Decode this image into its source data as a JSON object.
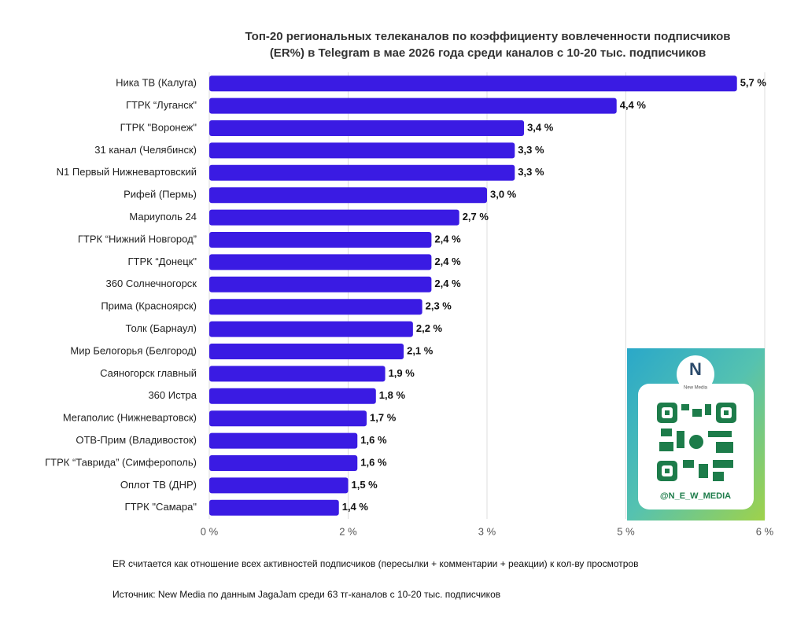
{
  "chart_data": {
    "type": "hbar",
    "title": [
      "Топ-20 региональных телеканалов по коэффициенту вовлеченности подписчиков",
      "(ER%) в Telegram в мае 2026 года среди каналов с 10-20 тыс. подписчиков"
    ],
    "categories": [
      "Ника ТВ (Калуга)",
      "ГТРК “Луганск\"",
      "ГТРК \"Воронеж\"",
      "31 канал (Челябинск)",
      "N1 Первый Нижневартовский",
      "Рифей (Пермь)",
      "Мариуполь 24",
      "ГТРК “Нижний Новгород”",
      "ГТРК “Донецк\"",
      "360 Солнечногорск",
      "Прима (Красноярск)",
      "Толк (Барнаул)",
      "Мир Белогорья (Белгород)",
      "Саяногорск главный",
      "360 Истра",
      "Мегаполис (Нижневартовск)",
      "ОТВ-Прим (Владивосток)",
      "ГТРК “Таврида” (Симферополь)",
      "Оплот ТВ (ДНР)",
      "ГТРК \"Самара\""
    ],
    "values": [
      5.7,
      4.4,
      3.4,
      3.3,
      3.3,
      3.0,
      2.7,
      2.4,
      2.4,
      2.4,
      2.3,
      2.2,
      2.1,
      1.9,
      1.8,
      1.7,
      1.6,
      1.6,
      1.5,
      1.4
    ],
    "value_labels": [
      "5,7 %",
      "4,4 %",
      "3,4 %",
      "3,3 %",
      "3,3 %",
      "3,0 %",
      "2,7 %",
      "2,4 %",
      "2,4 %",
      "2,4 %",
      "2,3 %",
      "2,2 %",
      "2,1 %",
      "1,9 %",
      "1,8 %",
      "1,7 %",
      "1,6 %",
      "1,6 %",
      "1,5 %",
      "1,4 %"
    ],
    "color": "#3a1be3",
    "xlim": [
      0,
      6
    ],
    "xticks": [
      {
        "value": 0,
        "label": "0 %"
      },
      {
        "value": 1.5,
        "label": "2 %"
      },
      {
        "value": 3,
        "label": "3 %"
      },
      {
        "value": 4.5,
        "label": "5 %"
      },
      {
        "value": 6,
        "label": "6 %"
      }
    ],
    "grid": true,
    "note": "ER считается как отношение всех активностей подписчиков (пересылки + комментарии + реакции) к кол-ву просмотров",
    "source": "Источник: New Media по данным JagaJam среди 63 тг-каналов с 10-20 тыс. подписчиков"
  },
  "badge": {
    "brand": "New Media",
    "handle": "@N_E_W_MEDIA"
  }
}
